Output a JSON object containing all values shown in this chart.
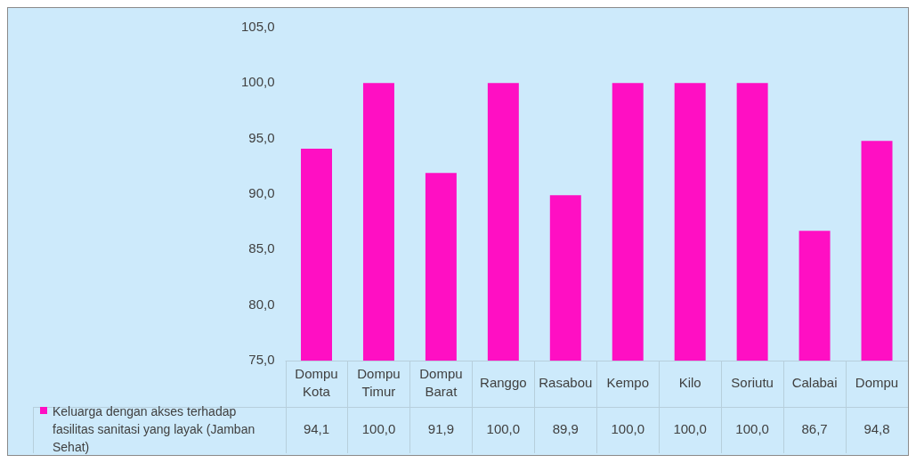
{
  "chart_data": {
    "type": "bar",
    "categories": [
      "Dompu Kota",
      "Dompu Timur",
      "Dompu Barat",
      "Ranggo",
      "Rasabou",
      "Kempo",
      "Kilo",
      "Soriutu",
      "Calabai",
      "Dompu"
    ],
    "series": [
      {
        "name": "Keluarga dengan akses terhadap fasilitas sanitasi yang layak (Jamban Sehat)",
        "color": "#ff0fc3",
        "values": [
          94.1,
          100.0,
          91.9,
          100.0,
          89.9,
          100.0,
          100.0,
          100.0,
          86.7,
          94.8
        ],
        "value_labels": [
          "94,1",
          "100,0",
          "91,9",
          "100,0",
          "89,9",
          "100,0",
          "100,0",
          "100,0",
          "86,7",
          "94,8"
        ]
      }
    ],
    "ylim": [
      75,
      105
    ],
    "yticks": [
      {
        "value": 75,
        "label": "75,0"
      },
      {
        "value": 80,
        "label": "80,0"
      },
      {
        "value": 85,
        "label": "85,0"
      },
      {
        "value": 90,
        "label": "90,0"
      },
      {
        "value": 95,
        "label": "95,0"
      },
      {
        "value": 100,
        "label": "100,0"
      },
      {
        "value": 105,
        "label": "105,0"
      }
    ],
    "grid": false,
    "legend": "bottom left"
  }
}
